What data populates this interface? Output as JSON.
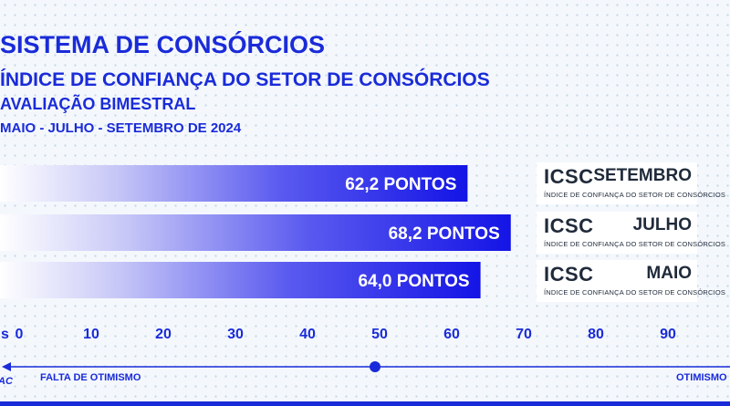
{
  "title": "SISTEMA DE CONSÓRCIOS",
  "subtitle": "ÍNDICE DE CONFIANÇA DO SETOR DE CONSÓRCIOS",
  "evaluation": "AVALIAÇÃO BIMESTRAL",
  "period": "MAIO - JULHO - SETEMBRO DE 2024",
  "cards": [
    {
      "code": "ICSC",
      "month": "SETEMBRO",
      "full": "ÍNDICE DE CONFIANÇA DO SETOR DE CONSÓRCIOS"
    },
    {
      "code": "ICSC",
      "month": "JULHO",
      "full": "ÍNDICE DE CONFIANÇA DO SETOR DE CONSÓRCIOS"
    },
    {
      "code": "ICSC",
      "month": "MAIO",
      "full": "ÍNDICE DE CONFIANÇA DO SETOR DE CONSÓRCIOS"
    }
  ],
  "axis": {
    "left_cut_label": "s",
    "right_label": "OTIMISMO",
    "left_label": "FALTA DE OTIMISMO",
    "left_edge_text": "AC",
    "marker_value": 50
  },
  "colors": {
    "bar": "#1a1ae6",
    "text": "#1a2bd9"
  },
  "chart_data": {
    "type": "bar",
    "orientation": "horizontal",
    "categories": [
      "SETEMBRO",
      "JULHO",
      "MAIO"
    ],
    "values": [
      62.2,
      68.2,
      64.0
    ],
    "value_labels": [
      "62,2 PONTOS",
      "68,2 PONTOS",
      "64,0 PONTOS"
    ],
    "ticks": [
      0,
      10,
      20,
      30,
      40,
      50,
      60,
      70,
      80,
      90
    ],
    "xlim": [
      0,
      100
    ]
  }
}
